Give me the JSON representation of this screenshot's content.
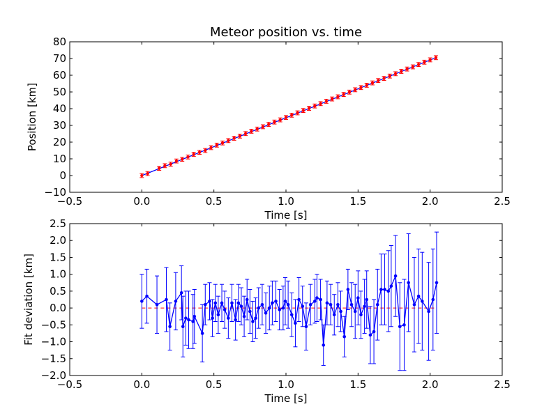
{
  "chart_data": [
    {
      "type": "scatter",
      "title": "Meteor position vs. time",
      "xlabel": "Time [s]",
      "ylabel": "Position [km]",
      "xlim": [
        -0.5,
        2.5
      ],
      "ylim": [
        -10,
        80
      ],
      "xticks": [
        "−0.5",
        "0.0",
        "0.5",
        "1.0",
        "1.5",
        "2.0",
        "2.5"
      ],
      "yticks": [
        "−10",
        "0",
        "10",
        "20",
        "30",
        "40",
        "50",
        "60",
        "70",
        "80"
      ],
      "grid": false,
      "colors": {
        "points": "#ff0000",
        "fit_line": "#0000ff"
      },
      "series": [
        {
          "x": [
            0,
            0.04,
            0.12,
            0.16,
            0.2,
            0.24,
            0.28,
            0.32,
            0.36,
            0.4,
            0.44,
            0.48,
            0.52,
            0.56,
            0.6,
            0.64,
            0.68,
            0.72,
            0.76,
            0.8,
            0.84,
            0.88,
            0.92,
            0.96,
            1.0,
            1.04,
            1.08,
            1.12,
            1.16,
            1.2,
            1.24,
            1.28,
            1.32,
            1.36,
            1.4,
            1.44,
            1.48,
            1.52,
            1.56,
            1.6,
            1.64,
            1.68,
            1.72,
            1.76,
            1.8,
            1.84,
            1.88,
            1.92,
            1.96,
            2.0,
            2.04
          ],
          "y": [
            0.0,
            1.2,
            4.3,
            5.9,
            6.8,
            8.7,
            9.7,
            11.1,
            12.7,
            13.9,
            15.0,
            16.7,
            18.2,
            19.5,
            20.9,
            22.3,
            23.6,
            25.1,
            26.5,
            27.8,
            29.2,
            30.6,
            32.0,
            33.3,
            34.7,
            36.1,
            37.5,
            38.9,
            40.2,
            41.6,
            43.0,
            44.4,
            45.8,
            47.1,
            48.5,
            49.9,
            51.3,
            52.6,
            54.0,
            55.4,
            56.8,
            58.1,
            59.5,
            60.9,
            62.3,
            63.7,
            65.0,
            66.4,
            67.8,
            69.2,
            70.5
          ],
          "error": 1.2
        }
      ]
    },
    {
      "type": "line",
      "xlabel": "Time [s]",
      "ylabel": "Fit deviation [km]",
      "xlim": [
        -0.5,
        2.5
      ],
      "ylim": [
        -2.0,
        2.5
      ],
      "xticks": [
        "−0.5",
        "0.0",
        "0.5",
        "1.0",
        "1.5",
        "2.0",
        "2.5"
      ],
      "yticks": [
        "−2.0",
        "−1.5",
        "−1.0",
        "−0.5",
        "0.0",
        "0.5",
        "1.0",
        "1.5",
        "2.0",
        "2.5"
      ],
      "grid": false,
      "reference_line": 0.0,
      "colors": {
        "series": "#0000ff",
        "reference": "#ff0000"
      },
      "series": [
        {
          "x": [
            0.0,
            0.035,
            0.105,
            0.17,
            0.195,
            0.235,
            0.275,
            0.285,
            0.305,
            0.325,
            0.355,
            0.365,
            0.42,
            0.44,
            0.47,
            0.49,
            0.51,
            0.53,
            0.555,
            0.575,
            0.6,
            0.625,
            0.65,
            0.67,
            0.69,
            0.71,
            0.73,
            0.75,
            0.77,
            0.79,
            0.81,
            0.835,
            0.86,
            0.885,
            0.905,
            0.93,
            0.955,
            0.98,
            0.995,
            1.015,
            1.04,
            1.065,
            1.09,
            1.115,
            1.14,
            1.17,
            1.2,
            1.215,
            1.24,
            1.26,
            1.285,
            1.31,
            1.335,
            1.36,
            1.38,
            1.405,
            1.43,
            1.455,
            1.48,
            1.5,
            1.52,
            1.545,
            1.56,
            1.585,
            1.61,
            1.635,
            1.66,
            1.685,
            1.71,
            1.73,
            1.76,
            1.79,
            1.82,
            1.85,
            1.89,
            1.92,
            1.945,
            1.99,
            2.02,
            2.045
          ],
          "y": [
            0.2,
            0.35,
            0.1,
            0.25,
            -0.55,
            0.2,
            0.45,
            -0.55,
            -0.3,
            -0.35,
            -0.4,
            -0.25,
            -0.75,
            0.1,
            0.2,
            -0.3,
            0.15,
            -0.2,
            0.15,
            -0.05,
            -0.3,
            0.15,
            -0.35,
            0.15,
            0.05,
            -0.25,
            0.25,
            -0.1,
            -0.4,
            -0.3,
            0.0,
            0.1,
            -0.15,
            0.0,
            0.15,
            0.2,
            -0.05,
            0.0,
            0.2,
            0.1,
            -0.2,
            -0.45,
            0.25,
            0.05,
            -0.55,
            0.1,
            0.2,
            0.3,
            0.25,
            -1.1,
            0.15,
            0.1,
            -0.2,
            0.1,
            -0.1,
            -0.85,
            0.55,
            0.1,
            -0.1,
            0.3,
            -0.2,
            0.05,
            0.25,
            -0.8,
            -0.7,
            0.1,
            0.55,
            0.55,
            0.5,
            0.65,
            0.95,
            -0.55,
            -0.5,
            0.75,
            0.1,
            0.35,
            0.2,
            -0.1,
            0.25,
            0.75
          ],
          "errors": [
            0.8,
            0.8,
            0.85,
            0.95,
            0.7,
            0.85,
            0.8,
            0.9,
            0.8,
            0.85,
            0.8,
            0.8,
            0.85,
            0.6,
            0.55,
            0.55,
            0.55,
            0.55,
            0.55,
            0.55,
            0.6,
            0.55,
            0.6,
            0.55,
            0.55,
            0.6,
            0.6,
            0.65,
            0.6,
            0.6,
            0.6,
            0.6,
            0.6,
            0.65,
            0.65,
            0.6,
            0.6,
            0.65,
            0.7,
            0.7,
            0.65,
            0.7,
            0.65,
            0.6,
            0.7,
            0.6,
            0.65,
            0.7,
            0.6,
            0.6,
            0.65,
            0.6,
            0.6,
            0.65,
            0.6,
            0.6,
            0.6,
            0.65,
            0.8,
            0.8,
            0.7,
            0.8,
            0.85,
            0.85,
            0.95,
            1.05,
            1.05,
            1.05,
            1.2,
            1.2,
            1.2,
            1.3,
            1.35,
            1.45,
            1.4,
            1.4,
            1.45,
            1.45,
            1.5,
            1.5
          ]
        }
      ]
    }
  ]
}
